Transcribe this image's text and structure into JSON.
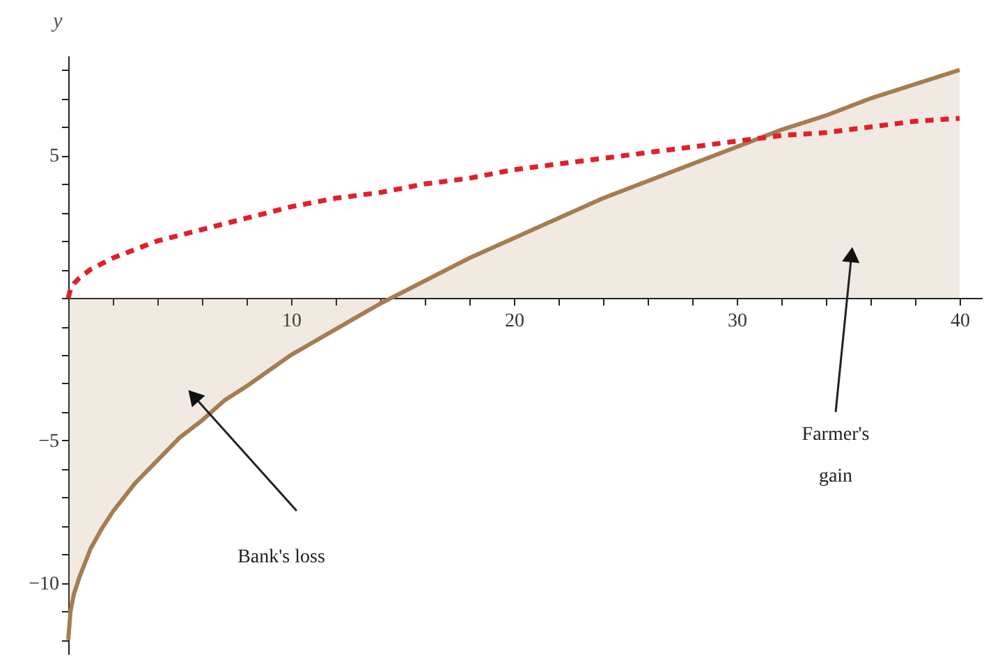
{
  "chart_data": {
    "type": "line",
    "ylabel": "y",
    "x": [
      0,
      0.1,
      0.25,
      0.5,
      1,
      1.5,
      2,
      3,
      4,
      5,
      6,
      7,
      8,
      10,
      12,
      14,
      16,
      18,
      20,
      22,
      24,
      26,
      28,
      30,
      32,
      34,
      36,
      38,
      40
    ],
    "series": [
      {
        "type": "area",
        "color": "#a67c52",
        "line_style": "solid",
        "values": [
          -12,
          -11,
          -10.4,
          -9.8,
          -8.8,
          -8.1,
          -7.5,
          -6.5,
          -5.7,
          -4.9,
          -4.3,
          -3.6,
          -3.1,
          -2,
          -1.1,
          -0.2,
          0.6,
          1.4,
          2.1,
          2.8,
          3.5,
          4.1,
          4.7,
          5.3,
          5.9,
          6.4,
          7,
          7.5,
          8
        ]
      },
      {
        "color": "#e0202a",
        "line_style": "dashed",
        "values": [
          0,
          0.3,
          0.5,
          0.7,
          1,
          1.2,
          1.4,
          1.7,
          2,
          2.2,
          2.4,
          2.6,
          2.8,
          3.2,
          3.5,
          3.7,
          4,
          4.2,
          4.5,
          4.7,
          4.9,
          5.1,
          5.3,
          5.5,
          5.7,
          5.8,
          6,
          6.2,
          6.3
        ]
      }
    ],
    "xlim": [
      0,
      41
    ],
    "ylim": [
      -12.5,
      8.5
    ],
    "xticks": [
      {
        "value": 2,
        "label": null
      },
      {
        "value": 4,
        "label": null
      },
      {
        "value": 6,
        "label": null
      },
      {
        "value": 8,
        "label": null
      },
      10,
      {
        "value": 12,
        "label": null
      },
      {
        "value": 14,
        "label": null
      },
      {
        "value": 16,
        "label": null
      },
      {
        "value": 18,
        "label": null
      },
      20,
      {
        "value": 22,
        "label": null
      },
      {
        "value": 24,
        "label": null
      },
      {
        "value": 26,
        "label": null
      },
      {
        "value": 28,
        "label": null
      },
      30,
      {
        "value": 32,
        "label": null
      },
      {
        "value": 34,
        "label": null
      },
      {
        "value": 36,
        "label": null
      },
      {
        "value": 38,
        "label": null
      },
      40
    ],
    "yticks": [
      {
        "value": -12,
        "label": null
      },
      {
        "value": -11,
        "label": null
      },
      {
        "value": -10,
        "label": "−10"
      },
      {
        "value": -9,
        "label": null
      },
      {
        "value": -8,
        "label": null
      },
      {
        "value": -7,
        "label": null
      },
      {
        "value": -6,
        "label": null
      },
      {
        "value": -5,
        "label": "−5"
      },
      {
        "value": -4,
        "label": null
      },
      {
        "value": -3,
        "label": null
      },
      {
        "value": -2,
        "label": null
      },
      {
        "value": -1,
        "label": null
      },
      {
        "value": 0,
        "label": null
      },
      {
        "value": 1,
        "label": null
      },
      {
        "value": 2,
        "label": null
      },
      {
        "value": 3,
        "label": null
      },
      {
        "value": 4,
        "label": null
      },
      5,
      {
        "value": 6,
        "label": null
      },
      {
        "value": 7,
        "label": null
      },
      {
        "value": 8,
        "label": null
      }
    ],
    "grid": false,
    "marker": "none",
    "annotations": [
      "Bank's loss",
      "Farmer's gain"
    ]
  }
}
